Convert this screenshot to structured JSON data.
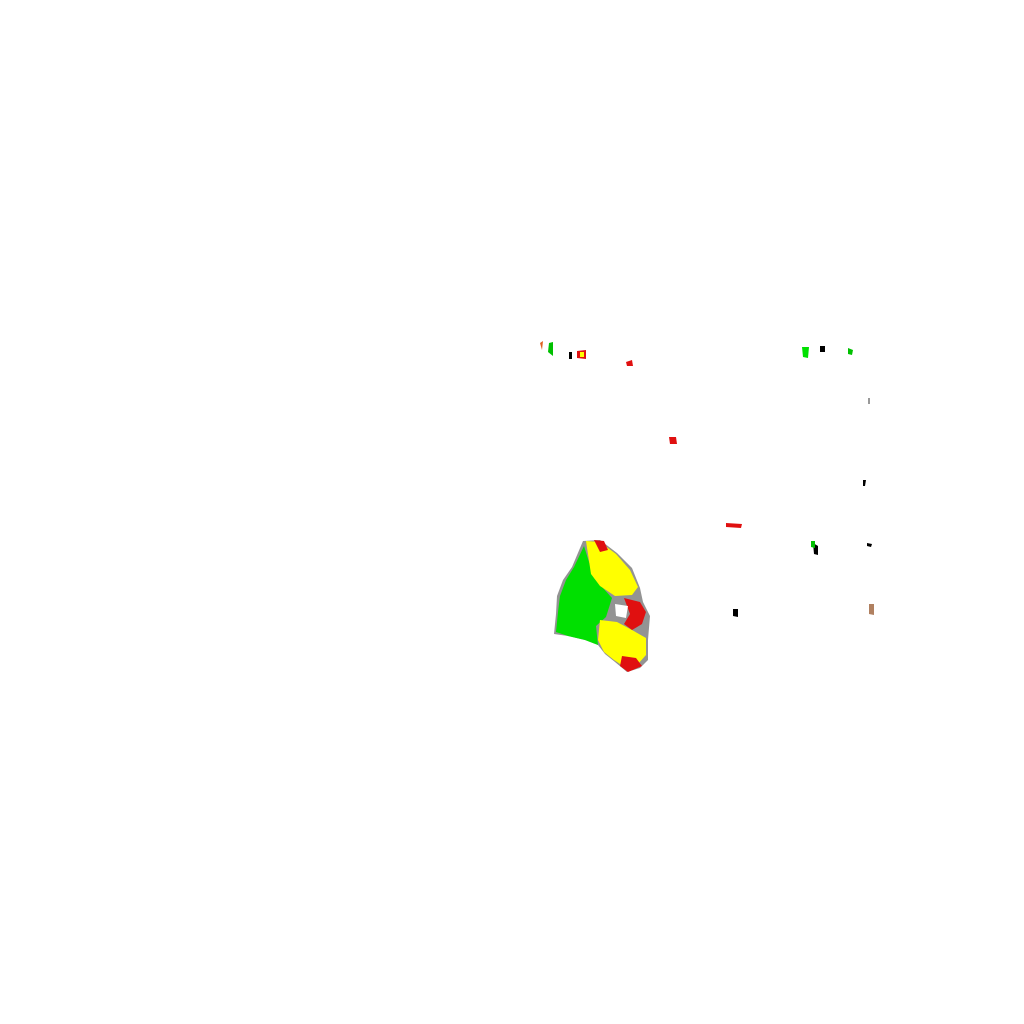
{
  "colors": {
    "background": "#ffffff",
    "green": "#00e000",
    "yellow": "#ffff00",
    "red": "#e01010",
    "black": "#000000",
    "brown": "#b08060",
    "gray": "#999999"
  },
  "scene": {
    "description_visible_text": ""
  }
}
